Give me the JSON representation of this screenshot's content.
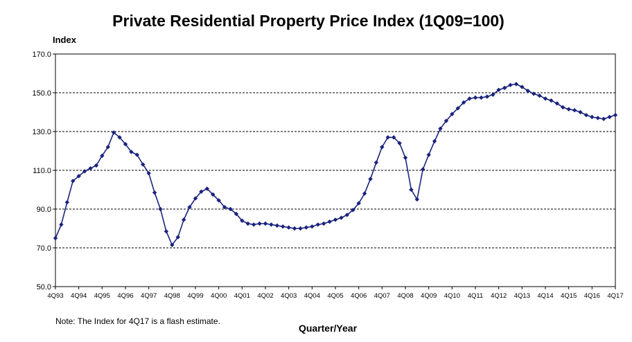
{
  "chart_data": {
    "type": "line",
    "title": "Private Residential Property Price Index (1Q09=100)",
    "ylabel": "Index",
    "xlabel": "Quarter/Year",
    "note": "Note: The Index for 4Q17 is a flash estimate.",
    "ylim": [
      50,
      170
    ],
    "yticks": [
      "50.0",
      "70.0",
      "90.0",
      "110.0",
      "130.0",
      "150.0",
      "170.0"
    ],
    "grid": "horizontal dashed",
    "legend": "none",
    "colors": {
      "line": "#1a237e",
      "marker": "#1a237e",
      "grid": "#000000"
    },
    "x_tick_labels": [
      "4Q93",
      "4Q94",
      "4Q95",
      "4Q96",
      "4Q97",
      "4Q98",
      "4Q99",
      "4Q00",
      "4Q01",
      "4Q02",
      "4Q03",
      "4Q04",
      "4Q05",
      "4Q06",
      "4Q07",
      "4Q08",
      "4Q09",
      "4Q10",
      "4Q11",
      "4Q12",
      "4Q13",
      "4Q14",
      "4Q15",
      "4Q16",
      "4Q17"
    ],
    "series": [
      {
        "name": "",
        "x": [
          "4Q93",
          "1Q94",
          "2Q94",
          "3Q94",
          "4Q94",
          "1Q95",
          "2Q95",
          "3Q95",
          "4Q95",
          "1Q96",
          "2Q96",
          "3Q96",
          "4Q96",
          "1Q97",
          "2Q97",
          "3Q97",
          "4Q97",
          "1Q98",
          "2Q98",
          "3Q98",
          "4Q98",
          "1Q99",
          "2Q99",
          "3Q99",
          "4Q99",
          "1Q00",
          "2Q00",
          "3Q00",
          "4Q00",
          "1Q01",
          "2Q01",
          "3Q01",
          "4Q01",
          "1Q02",
          "2Q02",
          "3Q02",
          "4Q02",
          "1Q03",
          "2Q03",
          "3Q03",
          "4Q03",
          "1Q04",
          "2Q04",
          "3Q04",
          "4Q04",
          "1Q05",
          "2Q05",
          "3Q05",
          "4Q05",
          "1Q06",
          "2Q06",
          "3Q06",
          "4Q06",
          "1Q07",
          "2Q07",
          "3Q07",
          "4Q07",
          "1Q08",
          "2Q08",
          "3Q08",
          "4Q08",
          "1Q09",
          "2Q09",
          "3Q09",
          "4Q09",
          "1Q10",
          "2Q10",
          "3Q10",
          "4Q10",
          "1Q11",
          "2Q11",
          "3Q11",
          "4Q11",
          "1Q12",
          "2Q12",
          "3Q12",
          "4Q12",
          "1Q13",
          "2Q13",
          "3Q13",
          "4Q13",
          "1Q14",
          "2Q14",
          "3Q14",
          "4Q14",
          "1Q15",
          "2Q15",
          "3Q15",
          "4Q15",
          "1Q16",
          "2Q16",
          "3Q16",
          "4Q16",
          "1Q17",
          "2Q17",
          "3Q17",
          "4Q17"
        ],
        "values": [
          75.0,
          82.0,
          93.5,
          104.5,
          107.0,
          109.5,
          111.0,
          112.5,
          117.5,
          122.0,
          129.5,
          127.0,
          123.5,
          119.5,
          118.0,
          113.0,
          108.5,
          98.5,
          90.0,
          78.5,
          71.5,
          75.5,
          84.5,
          91.0,
          95.5,
          99.0,
          100.5,
          97.5,
          94.5,
          91.0,
          90.0,
          87.5,
          84.0,
          82.5,
          82.0,
          82.5,
          82.5,
          82.0,
          81.5,
          81.0,
          80.5,
          80.0,
          80.0,
          80.5,
          81.0,
          82.0,
          82.5,
          83.5,
          84.5,
          85.5,
          87.0,
          89.5,
          93.0,
          98.0,
          105.5,
          114.0,
          122.0,
          127.0,
          127.0,
          124.0,
          116.5,
          100.0,
          95.0,
          110.5,
          118.0,
          125.0,
          131.5,
          135.5,
          139.0,
          142.0,
          145.0,
          147.0,
          147.5,
          147.5,
          148.0,
          149.0,
          151.5,
          152.5,
          154.0,
          154.5,
          153.0,
          151.0,
          149.5,
          148.5,
          147.0,
          146.0,
          144.5,
          142.5,
          141.5,
          141.0,
          140.0,
          138.5,
          137.5,
          137.0,
          136.5,
          137.5,
          138.5
        ]
      }
    ]
  }
}
